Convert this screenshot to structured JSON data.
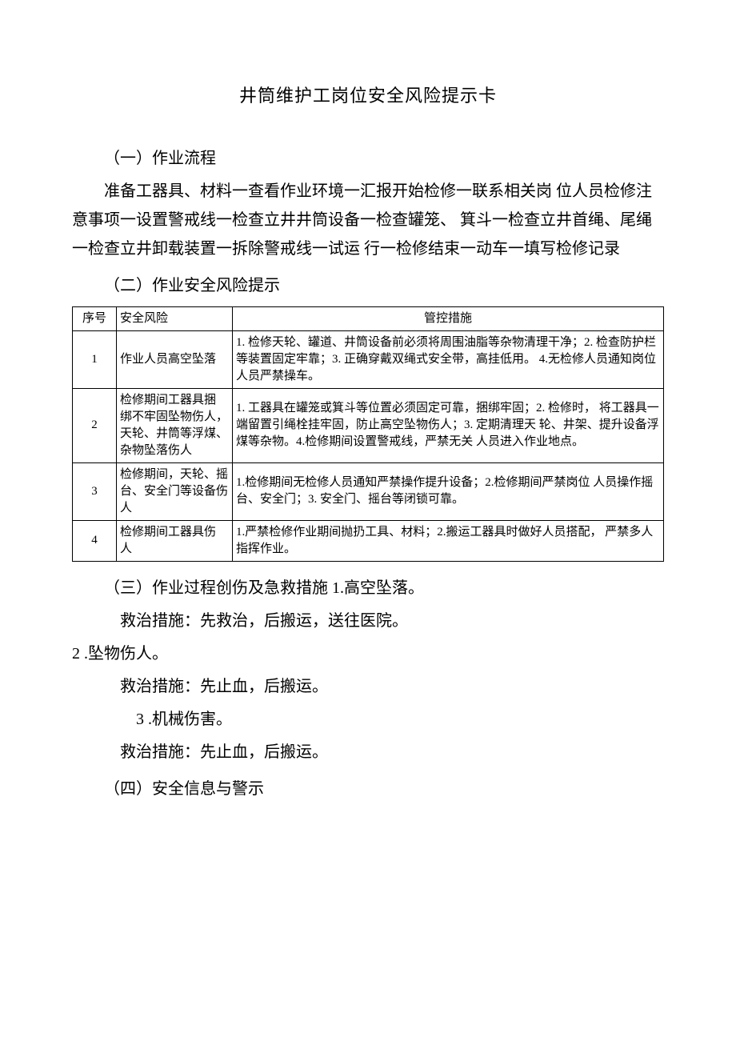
{
  "title": "井筒维护工岗位安全风险提示卡",
  "section1": {
    "heading": "（一）作业流程",
    "body": "准备工器具、材料一查看作业环境一汇报开始检修一联系相关岗 位人员检修注意事项一设置警戒线一检查立井井筒设备一检查罐笼、 箕斗一检查立井首绳、尾绳一检查立井卸载装置一拆除警戒线一试运 行一检修结束一动车一填写检修记录"
  },
  "section2": {
    "heading": "（二）作业安全风险提示",
    "table": {
      "headers": {
        "num": "序号",
        "risk": "安全风险",
        "ctrl": "管控措施"
      },
      "rows": [
        {
          "num": "1",
          "risk": "作业人员高空坠落",
          "ctrl": "1. 检修天轮、罐道、井筒设备前必须将周围油脂等杂物清理干净；2. 检查防护栏等装置固定牢靠；3. 正确穿戴双绳式安全带，高挂低用。\n4.无检修人员通知岗位人员严禁操车。"
        },
        {
          "num": "2",
          "risk": "检修期间工器具捆 绑不牢固坠物伤人， 天轮、井筒等浮煤、 杂物坠落伤人",
          "ctrl": "1. 工器具在罐笼或箕斗等位置必须固定可靠，捆绑牢固；2. 检修时， 将工器具一端留置引绳栓挂牢固，防止高空坠物伤人；3. 定期清理天 轮、井架、提升设备浮煤等杂物。4.检修期间设置警戒线，严禁无关 人员进入作业地点。"
        },
        {
          "num": "3",
          "risk": "检修期间，天轮、摇台、安全门等设备伤人",
          "ctrl": "1.检修期间无检修人员通知严禁操作提升设备；2.检修期间严禁岗位 人员操作摇台、安全门；3. 安全门、摇台等闭锁可靠。"
        },
        {
          "num": "4",
          "risk": "检修期间工器具伤 人",
          "ctrl": "1.严禁检修作业期间抛扔工具、材料；2.搬运工器具时做好人员搭配， 严禁多人指挥作业。"
        }
      ]
    }
  },
  "section3": {
    "heading_combined": "（三）作业过程创伤及急救措施  1.高空坠落。",
    "item1_remedy": "救治措施：先救治，后搬运，送往医院。",
    "item2_title": "2 .坠物伤人。",
    "item2_remedy": "救治措施：先止血，后搬运。",
    "item3_title": "3 .机械伤害。",
    "item3_remedy": "救治措施：先止血，后搬运。"
  },
  "section4": {
    "heading": "（四）安全信息与警示"
  }
}
